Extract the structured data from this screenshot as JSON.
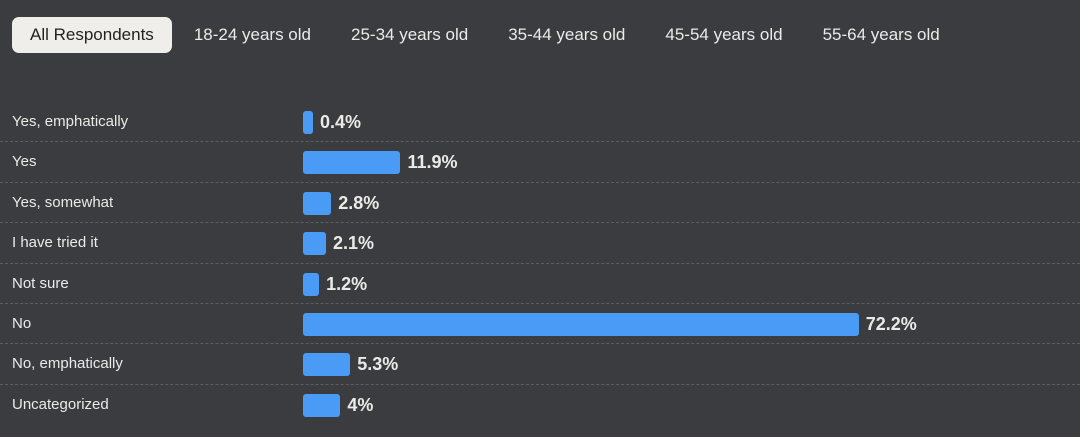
{
  "tabs": [
    {
      "label": "All Respondents",
      "active": true
    },
    {
      "label": "18-24 years old",
      "active": false
    },
    {
      "label": "25-34 years old",
      "active": false
    },
    {
      "label": "35-44 years old",
      "active": false
    },
    {
      "label": "45-54 years old",
      "active": false
    },
    {
      "label": "55-64 years old",
      "active": false
    }
  ],
  "chart_data": {
    "type": "bar",
    "orientation": "horizontal",
    "categories": [
      "Yes, emphatically",
      "Yes",
      "Yes, somewhat",
      "I have tried it",
      "Not sure",
      "No",
      "No, emphatically",
      "Uncategorized"
    ],
    "values": [
      0.4,
      11.9,
      2.8,
      2.1,
      1.2,
      72.2,
      5.3,
      4
    ],
    "data_labels": [
      "0.4%",
      "11.9%",
      "2.8%",
      "2.1%",
      "1.2%",
      "72.2%",
      "5.3%",
      "4%"
    ],
    "unit": "%",
    "bar_color": "#4a9bf5",
    "grid": false
  }
}
